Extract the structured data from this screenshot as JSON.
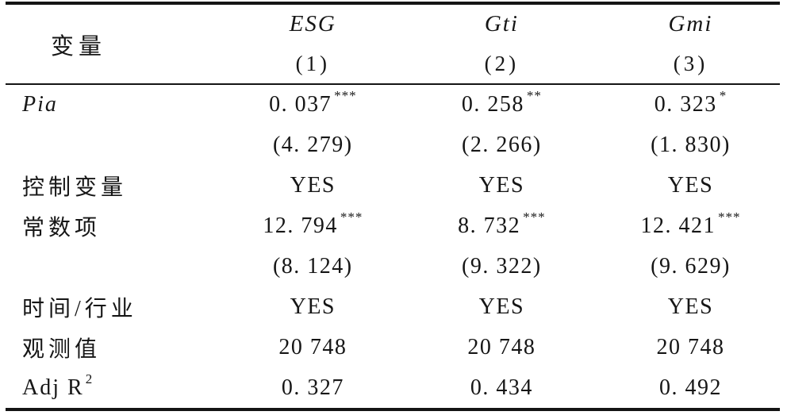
{
  "page": {
    "background": "#ffffff",
    "text_color": "#161616",
    "rule_color": "#141414"
  },
  "table": {
    "header": {
      "variable_label": "变量",
      "columns": [
        {
          "name": "ESG",
          "number": "(1)"
        },
        {
          "name": "Gti",
          "number": "(2)"
        },
        {
          "name": "Gmi",
          "number": "(3)"
        }
      ]
    },
    "rows": [
      {
        "label": "Pia",
        "cells": [
          {
            "text": "0. 037",
            "sup": "***"
          },
          {
            "text": "0. 258",
            "sup": "**"
          },
          {
            "text": "0. 323",
            "sup": "*"
          }
        ]
      },
      {
        "label": "",
        "cells": [
          {
            "text": "(4. 279)"
          },
          {
            "text": "(2. 266)"
          },
          {
            "text": "(1. 830)"
          }
        ]
      },
      {
        "label": "控制变量",
        "cells": [
          {
            "text": "YES"
          },
          {
            "text": "YES"
          },
          {
            "text": "YES"
          }
        ]
      },
      {
        "label": "常数项",
        "cells": [
          {
            "text": "12. 794",
            "sup": "***"
          },
          {
            "text": "8. 732",
            "sup": "***"
          },
          {
            "text": "12. 421",
            "sup": "***"
          }
        ]
      },
      {
        "label": "",
        "cells": [
          {
            "text": "(8. 124)"
          },
          {
            "text": "(9. 322)"
          },
          {
            "text": "(9. 629)"
          }
        ]
      },
      {
        "label": "时间/行业",
        "cells": [
          {
            "text": "YES"
          },
          {
            "text": "YES"
          },
          {
            "text": "YES"
          }
        ]
      },
      {
        "label": "观测值",
        "cells": [
          {
            "text": "20 748"
          },
          {
            "text": "20 748"
          },
          {
            "text": "20 748"
          }
        ]
      },
      {
        "label": "Adj R",
        "label_sup": "2",
        "cells": [
          {
            "text": "0. 327"
          },
          {
            "text": "0. 434"
          },
          {
            "text": "0. 492"
          }
        ]
      }
    ]
  }
}
